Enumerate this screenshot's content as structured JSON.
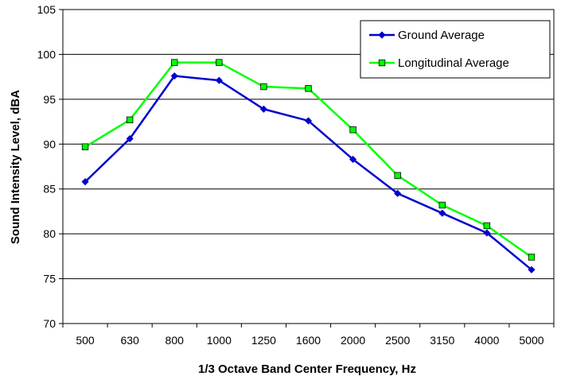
{
  "chart_data": {
    "type": "line",
    "title": "",
    "xlabel": "1/3 Octave Band Center Frequency, Hz",
    "ylabel": "Sound Intensity Level, dBA",
    "ylim": [
      70,
      105
    ],
    "yticks": [
      "70",
      "75",
      "80",
      "85",
      "90",
      "95",
      "100",
      "105"
    ],
    "categories": [
      "500",
      "630",
      "800",
      "1000",
      "1250",
      "1600",
      "2000",
      "2500",
      "3150",
      "4000",
      "5000"
    ],
    "grid": "horizontal",
    "legend_position": "top-right",
    "series": [
      {
        "name": "Ground Average",
        "color": "#0000cc",
        "marker": "diamond",
        "values": [
          85.8,
          90.6,
          97.6,
          97.1,
          93.9,
          92.6,
          88.3,
          84.5,
          82.3,
          80.1,
          76.0
        ]
      },
      {
        "name": "Longitudinal Average",
        "color": "#00ff00",
        "marker": "square",
        "values": [
          89.7,
          92.7,
          99.1,
          99.1,
          96.4,
          96.2,
          91.6,
          86.5,
          83.2,
          80.9,
          77.4
        ]
      }
    ]
  }
}
